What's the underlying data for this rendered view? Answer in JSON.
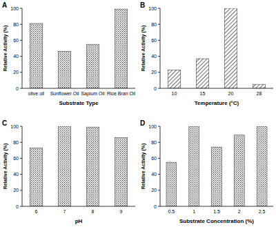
{
  "chart_data": [
    {
      "type": "bar",
      "title": "A",
      "x_label": "Substrate Type",
      "y_label": "Relative Activity (%)",
      "categories": [
        "olive oil",
        "Sunflower Oil",
        "Sapium Oil",
        "Rice Bran Oil"
      ],
      "values": [
        81,
        46,
        55,
        99
      ],
      "color": "#444444",
      "ylim": [
        0,
        100
      ],
      "yticks": [
        0,
        20,
        40,
        60,
        80,
        100
      ],
      "grid": false
    },
    {
      "type": "bar",
      "title": "B",
      "x_label": "Temperature (°C)",
      "y_label": "Relative Activity (%)",
      "categories": [
        "10",
        "15",
        "20",
        "28"
      ],
      "values": [
        23,
        37,
        100,
        5
      ],
      "color": "#444444",
      "ylim": [
        0,
        100
      ],
      "yticks": [
        0,
        20,
        40,
        60,
        80,
        100
      ],
      "grid": false
    },
    {
      "type": "bar",
      "title": "C",
      "x_label": "pH",
      "y_label": "Relative Activity (%)",
      "categories": [
        "6",
        "7",
        "8",
        "9"
      ],
      "values": [
        73,
        100,
        99,
        86
      ],
      "color": "#444444",
      "ylim": [
        0,
        100
      ],
      "yticks": [
        0,
        20,
        40,
        60,
        80,
        100
      ],
      "grid": false
    },
    {
      "type": "bar",
      "title": "D",
      "x_label": "Substrate Concentration (%)",
      "y_label": "Relative Activity (%)",
      "categories": [
        "0.5",
        "1",
        "1.5",
        "2",
        "2.5"
      ],
      "values": [
        55,
        100,
        74,
        89,
        100
      ],
      "color": "#444444",
      "ylim": [
        0,
        100
      ],
      "yticks": [
        0,
        20,
        40,
        60,
        80,
        100
      ],
      "grid": false
    }
  ]
}
